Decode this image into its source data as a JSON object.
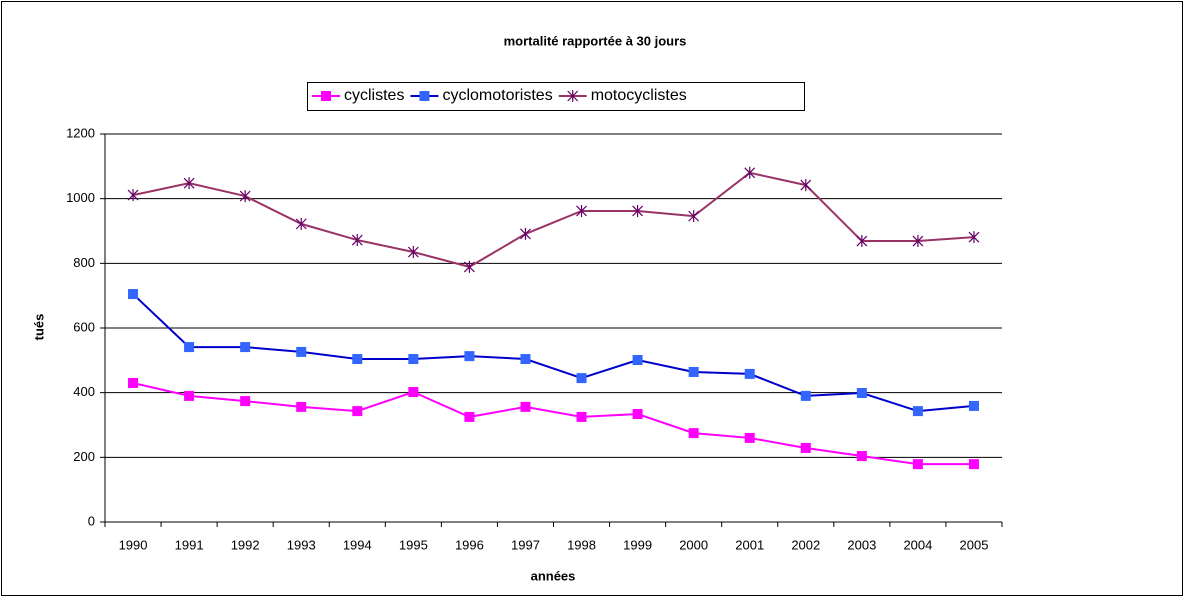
{
  "chart_data": {
    "type": "line",
    "title": "mortalité rapportée à 30 jours",
    "xlabel": "années",
    "ylabel": "tués",
    "categories": [
      "1990",
      "1991",
      "1992",
      "1993",
      "1994",
      "1995",
      "1996",
      "1997",
      "1998",
      "1999",
      "2000",
      "2001",
      "2002",
      "2003",
      "2004",
      "2005"
    ],
    "series": [
      {
        "name": "cyclistes",
        "color": "#ff00ff",
        "marker": "square",
        "values": [
          430,
          390,
          374,
          356,
          343,
          402,
          325,
          356,
          325,
          334,
          275,
          260,
          229,
          204,
          179,
          179
        ]
      },
      {
        "name": "cyclomotoristes",
        "color": "#0000cc",
        "marker": "square",
        "values": [
          705,
          541,
          541,
          526,
          504,
          504,
          513,
          504,
          445,
          501,
          464,
          458,
          390,
          399,
          343,
          359
        ]
      },
      {
        "name": "motocyclistes",
        "color": "#993366",
        "marker": "asterisk",
        "values": [
          1011,
          1048,
          1008,
          922,
          872,
          835,
          789,
          891,
          962,
          962,
          946,
          1080,
          1042,
          869,
          869,
          881
        ]
      }
    ],
    "ylim": [
      0,
      1200
    ],
    "yticks": [
      0,
      200,
      400,
      600,
      800,
      1000,
      1200
    ],
    "grid": true,
    "legend": "top"
  }
}
